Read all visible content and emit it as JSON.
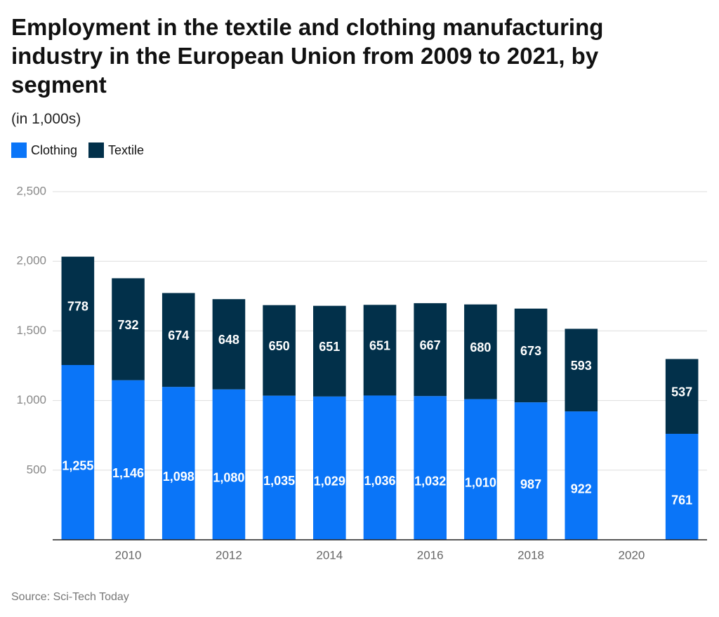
{
  "chart_data": {
    "type": "stacked-bar",
    "title": "Employment in the textile and clothing manufacturing industry in the European Union from 2009 to 2021, by segment",
    "subtitle": "(in 1,000s)",
    "source": "Source: Sci-Tech Today",
    "x": [
      2009,
      2010,
      2011,
      2012,
      2013,
      2014,
      2015,
      2016,
      2017,
      2018,
      2019,
      2020,
      2021
    ],
    "xlim": [
      2008.5,
      2021.5
    ],
    "xticks": [
      2010,
      2012,
      2014,
      2016,
      2018,
      2020
    ],
    "ylim": [
      0,
      2500
    ],
    "yticks": [
      500,
      {
        "value": 1000,
        "label": "1,000"
      },
      {
        "value": 1500,
        "label": "1,500"
      },
      {
        "value": 2000,
        "label": "2,000"
      },
      {
        "value": 2500,
        "label": "2,500"
      }
    ],
    "grid": true,
    "legend": "top-left",
    "series": [
      {
        "name": "Clothing",
        "color": "#0a75f8",
        "values": [
          1255,
          1146,
          1098,
          1080,
          1035,
          1029,
          1036,
          1032,
          1010,
          987,
          922,
          null,
          761
        ],
        "value_labels": [
          "1,255",
          "1,146",
          "1,098",
          "1,080",
          "1,035",
          "1,029",
          "1,036",
          "1,032",
          "1,010",
          "987",
          "922",
          null,
          "761"
        ]
      },
      {
        "name": "Textile",
        "color": "#02304a",
        "values": [
          778,
          732,
          674,
          648,
          650,
          651,
          651,
          667,
          680,
          673,
          593,
          null,
          537
        ]
      }
    ]
  }
}
